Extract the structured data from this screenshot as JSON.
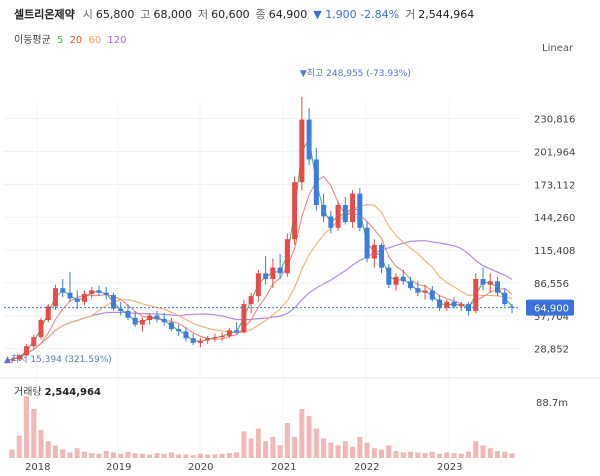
{
  "header": {
    "name": "셀트리온제약",
    "open_label": "시",
    "open": "65,800",
    "high_label": "고",
    "high": "68,000",
    "low_label": "저",
    "low": "60,600",
    "close_label": "종",
    "close": "64,900",
    "change": "▼ 1,900 -2.84%",
    "volume_label": "거",
    "volume": "2,544,964"
  },
  "ma_legend": {
    "label": "이동평균",
    "periods": [
      {
        "text": "5",
        "color": "#4caf50"
      },
      {
        "text": "20",
        "color": "#e8563a"
      },
      {
        "text": "60",
        "color": "#f0a050"
      },
      {
        "text": "120",
        "color": "#9b6be8"
      }
    ]
  },
  "scale_mode": "Linear",
  "colors": {
    "up": "#e84a4a",
    "down": "#3a7ee0",
    "ma5": "#4caf50",
    "ma20": "#f08070",
    "ma60": "#f0b070",
    "ma120": "#b58be8",
    "vol": "#f2b8b8"
  },
  "chart_data": {
    "type": "candlestick",
    "x_ticks": [
      "2018",
      "2019",
      "2020",
      "2021",
      "2022",
      "2023"
    ],
    "y_ticks": [
      "230,816",
      "201,964",
      "173,112",
      "144,260",
      "115,408",
      "86,556",
      "57,704",
      "28,852"
    ],
    "y_range": [
      15394,
      248955
    ],
    "current_price": "64,900",
    "current_price_value": 64900,
    "high_annotation": "▼최고 248,955 (-73.93%)",
    "high_value": 248955,
    "low_annotation": "▲최저 15,394 (321.59%)",
    "low_value": 15394,
    "candles": [
      [
        18500,
        21000,
        16000,
        19500
      ],
      [
        19500,
        24000,
        18000,
        23000
      ],
      [
        23000,
        33000,
        22000,
        31000
      ],
      [
        31000,
        41000,
        29000,
        39000
      ],
      [
        39000,
        56000,
        37000,
        54000
      ],
      [
        54000,
        68000,
        52000,
        66000
      ],
      [
        66000,
        85000,
        63000,
        82000
      ],
      [
        82000,
        90000,
        74000,
        78000
      ],
      [
        78000,
        96000,
        70000,
        73000
      ],
      [
        73000,
        80000,
        64000,
        70000
      ],
      [
        70000,
        80000,
        67000,
        77000
      ],
      [
        77000,
        83000,
        73000,
        80000
      ],
      [
        80000,
        84000,
        75000,
        78000
      ],
      [
        78000,
        83000,
        72000,
        76000
      ],
      [
        76000,
        78000,
        62000,
        64000
      ],
      [
        64000,
        70000,
        58000,
        62000
      ],
      [
        62000,
        68000,
        54000,
        56000
      ],
      [
        56000,
        62000,
        48000,
        50000
      ],
      [
        50000,
        56000,
        44000,
        54000
      ],
      [
        54000,
        60000,
        50000,
        58000
      ],
      [
        58000,
        62000,
        52000,
        55000
      ],
      [
        55000,
        60000,
        49000,
        52000
      ],
      [
        52000,
        56000,
        44000,
        46000
      ],
      [
        46000,
        50000,
        40000,
        44000
      ],
      [
        44000,
        48000,
        35000,
        38000
      ],
      [
        38000,
        42000,
        32000,
        34000
      ],
      [
        34000,
        38000,
        30000,
        36000
      ],
      [
        36000,
        40000,
        33000,
        38000
      ],
      [
        38000,
        42000,
        35000,
        39000
      ],
      [
        39000,
        43000,
        36000,
        40000
      ],
      [
        40000,
        47000,
        38000,
        45000
      ],
      [
        45000,
        52000,
        42000,
        43000
      ],
      [
        43000,
        72000,
        42000,
        68000
      ],
      [
        68000,
        78000,
        60000,
        75000
      ],
      [
        75000,
        98000,
        70000,
        95000
      ],
      [
        95000,
        110000,
        85000,
        90000
      ],
      [
        90000,
        108000,
        82000,
        100000
      ],
      [
        100000,
        112000,
        90000,
        95000
      ],
      [
        95000,
        130000,
        92000,
        125000
      ],
      [
        125000,
        180000,
        120000,
        175000
      ],
      [
        175000,
        250000,
        168000,
        230000
      ],
      [
        230000,
        240000,
        190000,
        195000
      ],
      [
        195000,
        205000,
        150000,
        155000
      ],
      [
        155000,
        165000,
        140000,
        145000
      ],
      [
        145000,
        150000,
        130000,
        135000
      ],
      [
        135000,
        158000,
        132000,
        155000
      ],
      [
        155000,
        162000,
        138000,
        140000
      ],
      [
        140000,
        168000,
        135000,
        165000
      ],
      [
        165000,
        170000,
        132000,
        135000
      ],
      [
        135000,
        140000,
        105000,
        108000
      ],
      [
        108000,
        125000,
        100000,
        120000
      ],
      [
        120000,
        122000,
        95000,
        100000
      ],
      [
        100000,
        103000,
        82000,
        85000
      ],
      [
        85000,
        95000,
        80000,
        92000
      ],
      [
        92000,
        98000,
        85000,
        88000
      ],
      [
        88000,
        92000,
        80000,
        82000
      ],
      [
        82000,
        88000,
        75000,
        78000
      ],
      [
        78000,
        85000,
        72000,
        80000
      ],
      [
        80000,
        84000,
        70000,
        72000
      ],
      [
        72000,
        76000,
        62000,
        65000
      ],
      [
        65000,
        72000,
        62000,
        70000
      ],
      [
        70000,
        74000,
        64000,
        66000
      ],
      [
        66000,
        70000,
        62000,
        68000
      ],
      [
        68000,
        70000,
        58000,
        62000
      ],
      [
        62000,
        95000,
        60000,
        90000
      ],
      [
        90000,
        100000,
        80000,
        85000
      ],
      [
        85000,
        95000,
        78000,
        88000
      ],
      [
        88000,
        92000,
        75000,
        78000
      ],
      [
        78000,
        82000,
        66000,
        68000
      ],
      [
        66000,
        68000,
        60000,
        64900
      ]
    ],
    "volume_max_label": "88.7m",
    "volume_label": "거래량",
    "volume_value": "2,544,964",
    "volume": [
      12,
      32,
      88,
      70,
      40,
      24,
      18,
      12,
      8,
      14,
      9,
      7,
      6,
      10,
      8,
      6,
      9,
      7,
      6,
      5,
      7,
      6,
      8,
      5,
      5,
      4,
      6,
      5,
      5,
      6,
      7,
      8,
      38,
      28,
      42,
      24,
      30,
      18,
      50,
      30,
      70,
      60,
      42,
      28,
      22,
      18,
      24,
      16,
      30,
      22,
      14,
      12,
      18,
      10,
      8,
      9,
      8,
      7,
      9,
      6,
      8,
      7,
      6,
      9,
      24,
      18,
      14,
      10,
      9,
      7
    ],
    "volume_range": [
      0,
      100
    ]
  }
}
